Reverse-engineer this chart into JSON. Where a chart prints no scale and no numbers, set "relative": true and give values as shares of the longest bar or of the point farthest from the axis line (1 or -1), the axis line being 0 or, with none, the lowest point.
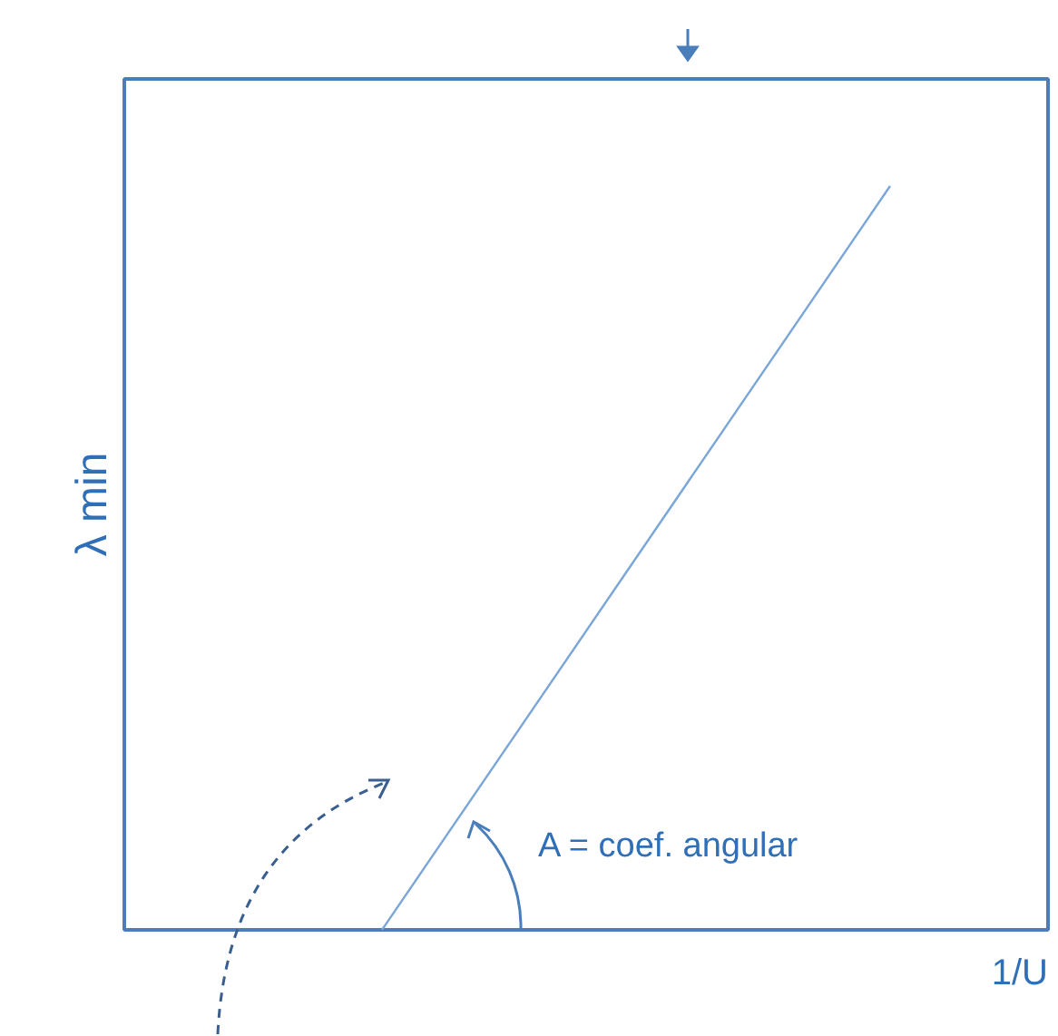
{
  "chart_data": {
    "type": "line",
    "relative": true,
    "categories": [
      null,
      null
    ],
    "series": [
      {
        "color": "#7aa6d8",
        "values": [
          0,
          1
        ]
      }
    ],
    "ylabel": "λ min",
    "xlabel": "1/U",
    "annotations": [
      "A = coef. angular"
    ],
    "grid": false
  }
}
